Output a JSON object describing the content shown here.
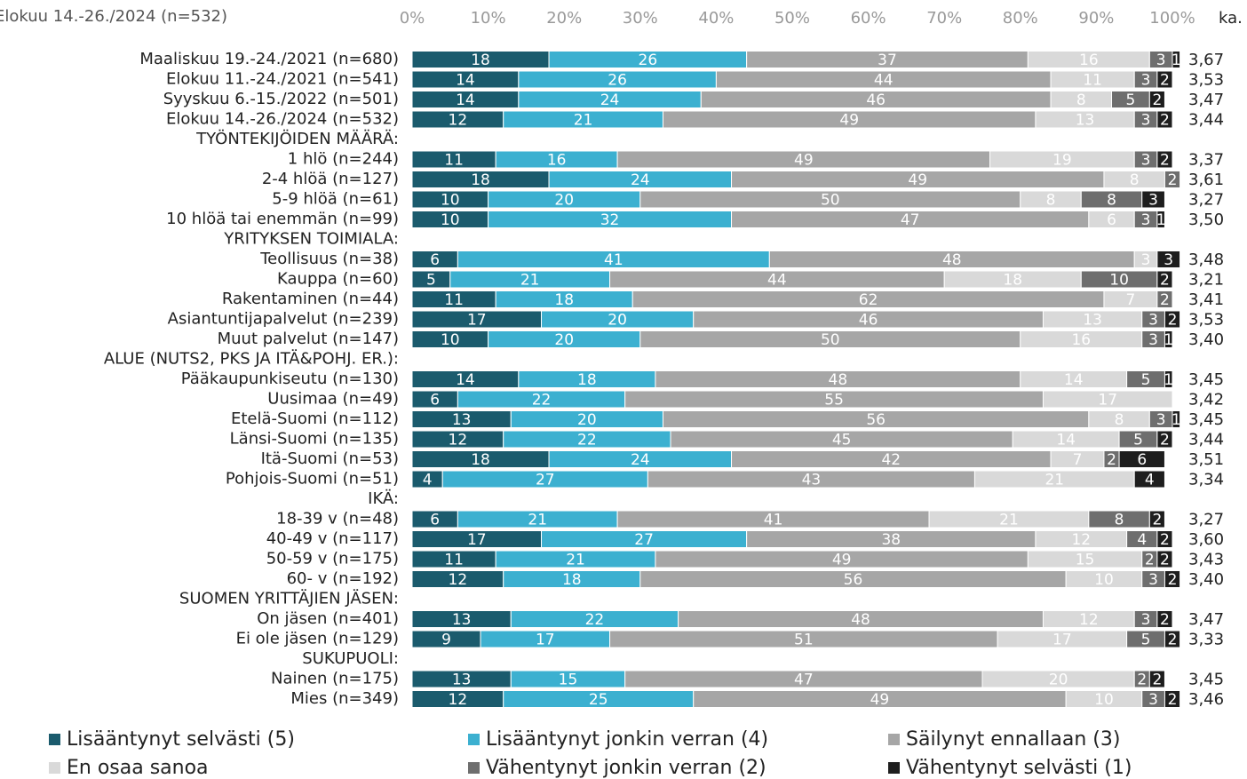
{
  "chart_data": {
    "type": "stacked_bar_horizontal",
    "title": "Elokuu 14.-26./2024 (n=532)",
    "categories": [
      "Maaliskuu 19.-24./2021 (n=680)",
      "Elokuu 11.-24./2021 (n=541)",
      "Syyskuu 6.-15./2022 (n=501)",
      "Elokuu 14.-26./2024 (n=532)",
      "TYÖNTEKIJÖIDEN MÄÄRÄ:",
      "1 hlö (n=244)",
      "2-4 hlöä (n=127)",
      "5-9 hlöä (n=61)",
      "10 hlöä tai enemmän (n=99)",
      "YRITYKSEN TOIMIALA:",
      "Teollisuus (n=38)",
      "Kauppa (n=60)",
      "Rakentaminen (n=44)",
      "Asiantuntijapalvelut (n=239)",
      "Muut palvelut (n=147)",
      "ALUE (NUTS2, PKS JA ITÄ&POHJ. ER.):",
      "Pääkaupunkiseutu (n=130)",
      "Uusimaa (n=49)",
      "Etelä-Suomi (n=112)",
      "Länsi-Suomi (n=135)",
      "Itä-Suomi (n=53)",
      "Pohjois-Suomi (n=51)",
      "IKÄ:",
      "18-39 v (n=48)",
      "40-49 v (n=117)",
      "50-59 v (n=175)",
      "60- v (n=192)",
      "SUOMEN YRITTÄJIEN JÄSEN:",
      "On jäsen (n=401)",
      "Ei ole jäsen (n=129)",
      "SUKUPUOLI:",
      "Nainen (n=175)",
      "Mies (n=349)"
    ],
    "series": [
      {
        "name": "Lisääntynyt selvästi (5)",
        "color": "#1b5b6d",
        "values": [
          18,
          14,
          14,
          12,
          null,
          11,
          18,
          10,
          10,
          null,
          6,
          5,
          11,
          17,
          10,
          null,
          14,
          6,
          13,
          12,
          18,
          4,
          null,
          6,
          17,
          11,
          12,
          null,
          13,
          9,
          null,
          13,
          12
        ]
      },
      {
        "name": "Lisääntynyt jonkin verran (4)",
        "color": "#3cb0d0",
        "values": [
          26,
          26,
          24,
          21,
          null,
          16,
          24,
          20,
          32,
          null,
          41,
          21,
          18,
          20,
          20,
          null,
          18,
          22,
          20,
          22,
          24,
          27,
          null,
          21,
          27,
          21,
          18,
          null,
          22,
          17,
          null,
          15,
          25
        ]
      },
      {
        "name": "Säilynyt ennallaan (3)",
        "color": "#a6a6a6",
        "values": [
          37,
          44,
          46,
          49,
          null,
          49,
          49,
          50,
          47,
          null,
          48,
          44,
          62,
          46,
          50,
          null,
          48,
          55,
          56,
          45,
          42,
          43,
          null,
          41,
          38,
          49,
          56,
          null,
          48,
          51,
          null,
          47,
          49
        ]
      },
      {
        "name": "En osaa sanoa",
        "color": "#d9d9d9",
        "values": [
          16,
          11,
          8,
          13,
          null,
          19,
          8,
          8,
          6,
          null,
          3,
          18,
          7,
          13,
          16,
          null,
          14,
          17,
          8,
          14,
          7,
          21,
          null,
          21,
          12,
          15,
          10,
          null,
          12,
          17,
          null,
          20,
          10
        ]
      },
      {
        "name": "Vähentynyt jonkin verran (2)",
        "color": "#6e6e6e",
        "values": [
          3,
          3,
          5,
          3,
          null,
          3,
          2,
          8,
          3,
          null,
          null,
          10,
          2,
          3,
          3,
          null,
          5,
          null,
          3,
          5,
          2,
          null,
          null,
          8,
          4,
          2,
          3,
          null,
          3,
          5,
          null,
          2,
          3
        ]
      },
      {
        "name": "Vähentynyt selvästi (1)",
        "color": "#1e1e1e",
        "values": [
          1,
          2,
          2,
          2,
          null,
          2,
          null,
          3,
          1,
          null,
          3,
          2,
          null,
          2,
          1,
          null,
          1,
          null,
          1,
          2,
          6,
          4,
          null,
          2,
          2,
          2,
          2,
          null,
          2,
          2,
          null,
          2,
          2
        ]
      }
    ],
    "mean": {
      "name": "ka.",
      "values": [
        3.67,
        3.53,
        3.47,
        3.44,
        null,
        3.37,
        3.61,
        3.27,
        3.5,
        null,
        3.48,
        3.21,
        3.41,
        3.53,
        3.4,
        null,
        3.45,
        3.42,
        3.45,
        3.44,
        3.51,
        3.34,
        null,
        3.27,
        3.6,
        3.43,
        3.4,
        null,
        3.47,
        3.33,
        null,
        3.45,
        3.46
      ],
      "value_labels": [
        "3,67",
        "3,53",
        "3,47",
        "3,44",
        null,
        "3,37",
        "3,61",
        "3,27",
        "3,50",
        null,
        "3,48",
        "3,21",
        "3,41",
        "3,53",
        "3,40",
        null,
        "3,45",
        "3,42",
        "3,45",
        "3,44",
        "3,51",
        "3,34",
        null,
        "3,27",
        "3,60",
        "3,43",
        "3,40",
        null,
        "3,47",
        "3,33",
        null,
        "3,45",
        "3,46"
      ]
    },
    "xlim": [
      0,
      100
    ],
    "xticks": [
      {
        "value": 0,
        "label": "0%"
      },
      {
        "value": 10,
        "label": "10%"
      },
      {
        "value": 20,
        "label": "20%"
      },
      {
        "value": 30,
        "label": "30%"
      },
      {
        "value": 40,
        "label": "40%"
      },
      {
        "value": 50,
        "label": "50%"
      },
      {
        "value": 60,
        "label": "60%"
      },
      {
        "value": 70,
        "label": "70%"
      },
      {
        "value": 80,
        "label": "80%"
      },
      {
        "value": 90,
        "label": "90%"
      },
      {
        "value": 100,
        "label": "100%"
      }
    ]
  }
}
